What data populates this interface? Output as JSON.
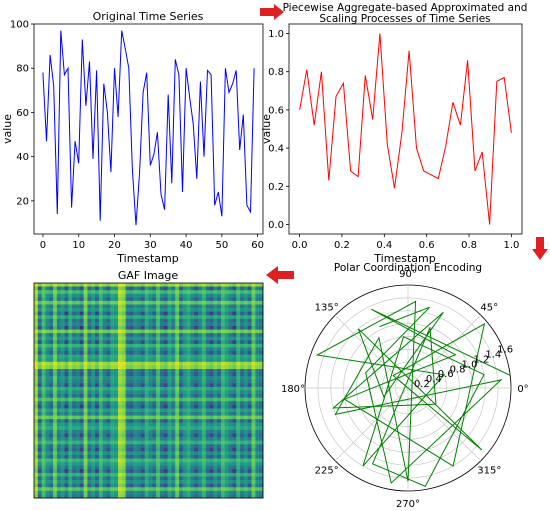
{
  "chart_data": [
    {
      "type": "line",
      "title": "Original Time Series",
      "xlabel": "Timestamp",
      "ylabel": "value",
      "xlim": [
        -2.5,
        61.5
      ],
      "ylim": [
        5,
        100
      ],
      "xticks": [
        "0",
        "10",
        "20",
        "30",
        "40",
        "50",
        "60"
      ],
      "yticks": [
        "20",
        "40",
        "60",
        "80",
        "100"
      ],
      "grid": false,
      "series": [
        {
          "color": "#0000ff",
          "x": [
            0,
            1,
            2,
            3,
            4,
            5,
            6,
            7,
            8,
            9,
            10,
            11,
            12,
            13,
            14,
            15,
            16,
            17,
            18,
            19,
            20,
            21,
            22,
            23,
            24,
            25,
            26,
            27,
            28,
            29,
            30,
            31,
            32,
            33,
            34,
            35,
            36,
            37,
            38,
            39,
            40,
            41,
            42,
            43,
            44,
            45,
            46,
            47,
            48,
            49,
            50,
            51,
            52,
            53,
            54,
            55,
            56,
            57,
            58,
            59
          ],
          "y": [
            78,
            47,
            86,
            72,
            14,
            97,
            77,
            80,
            17,
            47,
            37,
            93,
            63,
            83,
            39,
            79,
            11,
            73,
            60,
            33,
            80,
            58,
            97,
            89,
            80,
            34,
            9,
            33,
            69,
            78,
            36,
            41,
            51,
            23,
            16,
            68,
            28,
            84,
            77,
            24,
            80,
            67,
            55,
            30,
            74,
            40,
            79,
            77,
            18,
            24,
            13,
            80,
            69,
            73,
            79,
            43,
            59,
            18,
            15,
            80
          ]
        }
      ]
    },
    {
      "type": "line",
      "title": "Piecewise Aggregate-based Approximated and Scaling Processes of Time Series",
      "title_lines": [
        "Piecewise Aggregate-based Approximated and",
        "Scaling Processes of Time Series"
      ],
      "xlabel": "Timestamp",
      "ylabel": "value",
      "xlim": [
        -0.05,
        1.05
      ],
      "ylim": [
        -0.05,
        1.05
      ],
      "xticks": [
        "0.0",
        "0.2",
        "0.4",
        "0.6",
        "0.8",
        "1.0"
      ],
      "yticks": [
        "0.0",
        "0.2",
        "0.4",
        "0.6",
        "0.8",
        "1.0"
      ],
      "grid": false,
      "series": [
        {
          "color": "#ff0000",
          "x": [
            0.0,
            0.034,
            0.069,
            0.103,
            0.138,
            0.172,
            0.207,
            0.241,
            0.276,
            0.31,
            0.345,
            0.379,
            0.414,
            0.448,
            0.483,
            0.517,
            0.552,
            0.586,
            0.621,
            0.655,
            0.69,
            0.724,
            0.759,
            0.793,
            0.828,
            0.862,
            0.897,
            0.931,
            0.966,
            1.0
          ],
          "y": [
            0.6,
            0.81,
            0.52,
            0.8,
            0.23,
            0.67,
            0.74,
            0.28,
            0.25,
            0.78,
            0.55,
            1.0,
            0.42,
            0.19,
            0.48,
            0.91,
            0.4,
            0.28,
            0.26,
            0.24,
            0.41,
            0.64,
            0.52,
            0.86,
            0.28,
            0.38,
            0.0,
            0.75,
            0.77,
            0.48
          ]
        }
      ]
    },
    {
      "type": "line",
      "polar": true,
      "title": "Polar Coordination Encoding",
      "angle_ticks": [
        "0°",
        "45°",
        "90°",
        "135°",
        "180°",
        "225°",
        "270°",
        "315°"
      ],
      "radial_ticks": [
        "0.2",
        "0.4",
        "0.6",
        "0.8",
        "1.0",
        "1.2",
        "1.4",
        "1.6"
      ],
      "rlim": [
        0,
        1.6
      ],
      "grid": true,
      "series": [
        {
          "color": "#008000",
          "angle_deg": [
            7,
            115,
            35,
            190,
            300,
            40,
            140,
            320,
            130,
            200,
            65,
            195,
            330,
            70,
            245,
            280,
            10,
            95,
            240,
            20,
            160,
            85,
            270,
            120,
            200,
            5,
            260,
            160,
            75,
            115
          ],
          "r": [
            1.6,
            1.35,
            0.9,
            1.0,
            1.4,
            1.55,
            0.3,
            1.5,
            1.2,
            0.4,
            1.3,
            1.2,
            0.5,
            1.0,
            1.3,
            1.55,
            1.2,
            0.8,
            1.4,
            0.6,
            1.5,
            1.35,
            1.45,
            0.9,
            1.2,
            1.45,
            1.5,
            0.7,
            1.3,
            1.05
          ]
        }
      ]
    },
    {
      "type": "heatmap",
      "title": "GAF Image",
      "colormap": "viridis",
      "grid": false,
      "values": [
        0.93,
        0.23,
        0.76,
        0.51,
        0.31,
        0.83,
        0.41,
        0.56,
        0.16,
        0.66,
        0.35,
        0.46,
        0.12,
        0.86,
        0.33,
        0.56,
        0.18,
        0.71,
        0.44,
        0.25,
        0.63,
        0.56,
        0.96,
        0.91,
        0.35,
        0.26,
        0.51,
        0.43,
        0.21,
        0.66,
        0.49,
        0.31,
        0.76,
        0.36,
        0.16,
        0.61,
        0.41,
        0.83,
        0.26,
        0.56,
        0.66,
        0.43,
        0.21,
        0.48,
        0.71,
        0.36,
        0.18,
        0.53,
        0.29,
        0.73,
        0.58,
        0.4,
        0.15,
        0.69,
        0.33,
        0.54,
        0.23,
        0.81,
        0.47,
        0.38
      ]
    }
  ],
  "arrows": [
    {
      "name": "arrow-right",
      "color": "#e02020"
    },
    {
      "name": "arrow-down",
      "color": "#e02020"
    },
    {
      "name": "arrow-left",
      "color": "#e02020"
    }
  ]
}
